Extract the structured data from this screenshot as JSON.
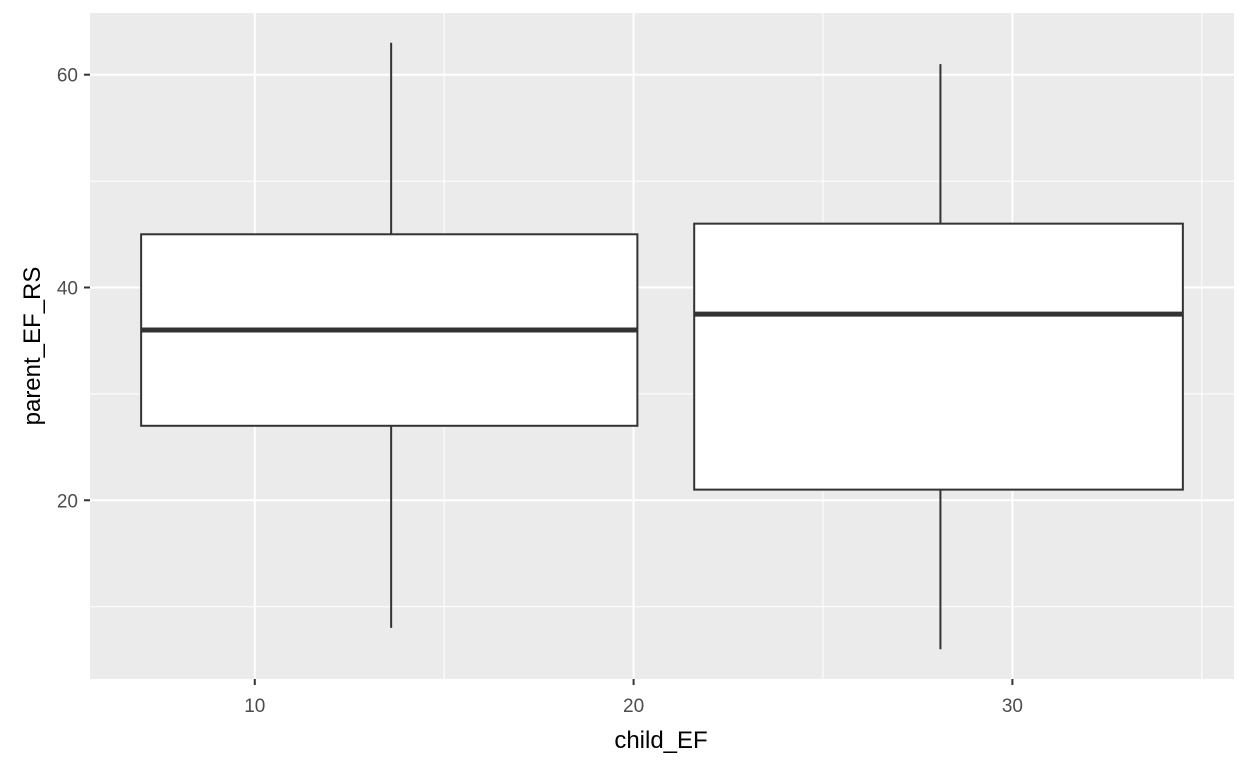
{
  "chart_data": {
    "type": "boxplot",
    "xlabel": "child_EF",
    "ylabel": "parent_EF_RS",
    "xlim": [
      5.65,
      35.85
    ],
    "ylim": [
      3.2,
      65.8
    ],
    "x_ticks": [
      10,
      20,
      30
    ],
    "y_ticks": [
      20,
      40,
      60
    ],
    "grid": true,
    "colors": {
      "panel": "#ebebeb",
      "grid": "#ffffff",
      "box_fill": "#ffffff",
      "box_line": "#333333",
      "tick_text": "#4d4d4d",
      "title_text": "#000000"
    },
    "boxes": [
      {
        "x_center": 13.6,
        "x_min": 7.0,
        "x_max": 20.1,
        "whisker_low": 8,
        "q1": 27,
        "median": 36,
        "q3": 45,
        "whisker_high": 63
      },
      {
        "x_center": 28.1,
        "x_min": 21.6,
        "x_max": 34.5,
        "whisker_low": 6,
        "q1": 21,
        "median": 37.5,
        "q3": 46,
        "whisker_high": 61
      }
    ]
  }
}
